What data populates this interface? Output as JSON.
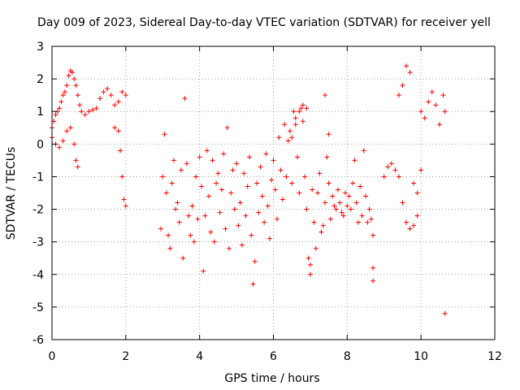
{
  "chart_data": {
    "type": "scatter",
    "title": "Day 009 of 2023, Sidereal Day-to-day VTEC variation (SDTVAR) for receiver yell",
    "xlabel": "GPS time / hours",
    "ylabel": "SDTVAR / TECUs",
    "xlim": [
      0,
      12
    ],
    "ylim": [
      -6,
      3
    ],
    "xticks": [
      0,
      2,
      4,
      6,
      8,
      10,
      12
    ],
    "yticks": [
      -6,
      -5,
      -4,
      -3,
      -2,
      -1,
      0,
      1,
      2,
      3
    ],
    "grid": true,
    "marker": "+",
    "color": "#ff0000",
    "series": [
      {
        "name": "SDTVAR",
        "x": [
          0.0,
          0.05,
          0.1,
          0.15,
          0.2,
          0.25,
          0.3,
          0.35,
          0.4,
          0.45,
          0.5,
          0.55,
          0.6,
          0.65,
          0.7,
          0.75,
          0.8,
          0.9,
          1.0,
          1.1,
          1.2,
          1.3,
          1.4,
          1.5,
          1.6,
          1.7,
          1.8,
          1.9,
          2.0,
          0.0,
          0.1,
          0.2,
          0.3,
          0.4,
          0.5,
          0.6,
          0.65,
          0.7,
          1.7,
          1.8,
          1.85,
          1.9,
          1.95,
          2.0,
          2.95,
          3.0,
          3.05,
          3.1,
          3.15,
          3.2,
          3.25,
          3.3,
          3.35,
          3.4,
          3.45,
          3.5,
          3.55,
          3.6,
          3.65,
          3.7,
          3.75,
          3.8,
          3.85,
          3.9,
          3.95,
          4.0,
          4.05,
          4.1,
          4.15,
          4.2,
          4.25,
          4.3,
          4.35,
          4.4,
          4.45,
          4.5,
          4.55,
          4.6,
          4.65,
          4.7,
          4.75,
          4.8,
          4.85,
          4.9,
          4.95,
          5.0,
          5.05,
          5.1,
          5.15,
          5.2,
          5.25,
          5.3,
          5.35,
          5.4,
          5.45,
          5.5,
          5.55,
          5.6,
          5.65,
          5.7,
          5.75,
          5.8,
          5.85,
          5.9,
          5.95,
          6.0,
          6.05,
          6.1,
          6.15,
          6.2,
          6.25,
          6.3,
          6.35,
          6.4,
          6.45,
          6.5,
          6.55,
          6.6,
          6.65,
          6.7,
          6.75,
          6.8,
          6.85,
          6.9,
          6.95,
          7.0,
          7.05,
          7.1,
          7.15,
          7.2,
          7.25,
          7.3,
          7.35,
          7.4,
          7.45,
          7.5,
          7.55,
          7.6,
          7.65,
          7.7,
          7.75,
          7.8,
          7.85,
          7.9,
          7.95,
          8.0,
          8.05,
          8.1,
          8.15,
          8.2,
          8.25,
          8.3,
          8.35,
          8.4,
          8.45,
          8.5,
          8.55,
          8.6,
          8.65,
          8.7,
          9.0,
          9.1,
          9.2,
          9.3,
          9.4,
          9.5,
          9.6,
          9.7,
          9.8,
          9.9,
          10.0,
          10.1,
          10.2,
          10.3,
          10.4,
          10.5,
          10.6,
          10.65,
          9.4,
          9.5,
          9.6,
          9.7,
          9.8,
          9.9,
          10.0,
          6.5,
          6.6,
          6.7,
          6.8,
          6.9,
          7.0,
          7.4,
          7.5,
          8.7,
          8.7,
          10.65
        ],
        "y": [
          0.5,
          0.7,
          0.9,
          1.0,
          1.1,
          1.3,
          1.5,
          1.6,
          1.8,
          2.1,
          2.25,
          2.2,
          2.0,
          1.8,
          1.5,
          1.2,
          1.0,
          0.9,
          1.0,
          1.05,
          1.1,
          1.4,
          1.6,
          1.7,
          1.5,
          1.2,
          1.3,
          1.6,
          1.5,
          0.2,
          0.0,
          -0.1,
          0.1,
          0.4,
          0.5,
          0.0,
          -0.5,
          -0.7,
          0.5,
          0.4,
          -0.2,
          -1.0,
          -1.7,
          -1.9,
          -2.6,
          -1.0,
          0.3,
          -1.5,
          -2.8,
          -3.2,
          -1.2,
          -0.5,
          -2.0,
          -1.8,
          -2.4,
          -0.8,
          -3.5,
          1.4,
          -0.6,
          -2.2,
          -2.8,
          -1.9,
          -3.0,
          -1.0,
          -2.3,
          -0.4,
          -1.3,
          -3.9,
          -2.2,
          -0.2,
          -1.6,
          -2.7,
          -0.5,
          -3.0,
          -1.2,
          -0.9,
          -2.1,
          -1.4,
          -0.3,
          -2.6,
          0.5,
          -3.2,
          -1.5,
          -0.8,
          -2.0,
          -0.6,
          -2.5,
          -1.8,
          -3.1,
          -0.9,
          -2.2,
          -1.3,
          -0.4,
          -2.8,
          -4.3,
          -3.6,
          -1.2,
          -2.1,
          -0.7,
          -1.6,
          -2.4,
          -0.3,
          -1.9,
          -2.9,
          -1.1,
          -0.5,
          -1.4,
          -2.3,
          0.2,
          -0.8,
          -1.7,
          0.6,
          -1.0,
          0.1,
          0.4,
          -1.2,
          1.0,
          0.8,
          -0.4,
          -1.5,
          1.1,
          0.7,
          -1.0,
          -2.0,
          -3.5,
          -3.7,
          -1.4,
          -2.4,
          -3.2,
          -1.5,
          -0.9,
          -2.7,
          -2.5,
          -1.8,
          -0.4,
          -1.2,
          -2.3,
          -1.6,
          -1.9,
          -2.0,
          -1.4,
          -1.8,
          -2.1,
          -2.2,
          -1.5,
          -1.9,
          -1.6,
          -2.0,
          -1.2,
          -0.5,
          -1.8,
          -2.4,
          -1.3,
          -2.2,
          -0.2,
          -1.6,
          -2.4,
          -2.0,
          -2.3,
          -2.8,
          -1.0,
          -0.7,
          -0.6,
          -0.8,
          1.5,
          1.8,
          2.4,
          2.2,
          -1.2,
          -1.5,
          1.0,
          0.8,
          1.3,
          1.6,
          1.2,
          0.6,
          1.5,
          1.0,
          -1.0,
          -1.8,
          -2.4,
          -2.6,
          -2.5,
          -2.2,
          -0.8,
          0.2,
          0.6,
          1.0,
          1.2,
          1.1,
          -4.0,
          1.5,
          0.3,
          -3.8,
          -4.2,
          -5.2
        ]
      }
    ]
  }
}
